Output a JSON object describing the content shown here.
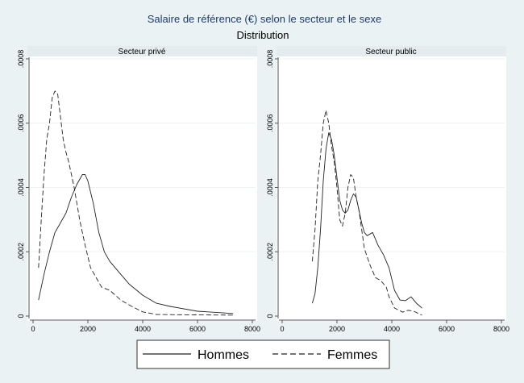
{
  "title": "Salaire de référence (€) selon le secteur et le sexe",
  "subtitle": "Distribution",
  "colors": {
    "title": "#1e3a6e",
    "background": "#eaf2f3",
    "plot": "#ffffff",
    "line": "#222222"
  },
  "legend": {
    "position": "bottom",
    "items": [
      "Hommes",
      "Femmes"
    ]
  },
  "chart_data": [
    {
      "type": "line",
      "title": "Secteur privé",
      "xlim": [
        0,
        8000
      ],
      "ylim": [
        0,
        0.0008
      ],
      "xticks": [
        "0",
        "2000",
        "4000",
        "6000",
        "8000"
      ],
      "yticks": [
        "0",
        ".0002",
        ".0004",
        ".0006",
        ".0008"
      ],
      "grid": true,
      "series": [
        {
          "name": "Hommes",
          "style": "solid",
          "x": [
            200,
            400,
            600,
            800,
            1000,
            1200,
            1400,
            1600,
            1800,
            1900,
            2000,
            2200,
            2400,
            2600,
            2800,
            3000,
            3200,
            3500,
            4000,
            4500,
            5000,
            6000,
            7300
          ],
          "y": [
            5e-05,
            0.00013,
            0.0002,
            0.00026,
            0.00029,
            0.00032,
            0.00037,
            0.00041,
            0.00044,
            0.00044,
            0.00042,
            0.00035,
            0.00026,
            0.0002,
            0.00017,
            0.00015,
            0.00013,
            0.0001,
            6.5e-05,
            4e-05,
            3e-05,
            1.5e-05,
            8e-06
          ]
        },
        {
          "name": "Femmes",
          "style": "dashed",
          "x": [
            200,
            300,
            400,
            500,
            600,
            700,
            800,
            900,
            1000,
            1100,
            1200,
            1300,
            1500,
            1700,
            1900,
            2100,
            2300,
            2500,
            2800,
            3200,
            3600,
            4000,
            4500,
            5500,
            7300
          ],
          "y": [
            0.00015,
            0.0003,
            0.00044,
            0.00055,
            0.0006,
            0.00068,
            0.0007,
            0.00069,
            0.00062,
            0.00055,
            0.00051,
            0.00048,
            0.0004,
            0.0003,
            0.00022,
            0.00015,
            0.00012,
            9e-05,
            8e-05,
            5e-05,
            3e-05,
            1.3e-05,
            5e-06,
            4e-06,
            3e-06
          ]
        }
      ]
    },
    {
      "type": "line",
      "title": "Secteur public",
      "xlim": [
        0,
        8000
      ],
      "ylim": [
        0,
        0.0008
      ],
      "xticks": [
        "0",
        "2000",
        "4000",
        "6000",
        "8000"
      ],
      "yticks": [
        "0",
        ".0002",
        ".0004",
        ".0006",
        ".0008"
      ],
      "grid": true,
      "series": [
        {
          "name": "Hommes",
          "style": "solid",
          "x": [
            1100,
            1200,
            1300,
            1400,
            1500,
            1600,
            1700,
            1800,
            1900,
            2000,
            2100,
            2200,
            2300,
            2400,
            2500,
            2600,
            2700,
            2800,
            2900,
            3000,
            3100,
            3300,
            3500,
            3700,
            3900,
            4100,
            4300,
            4500,
            4700,
            4900,
            5100
          ],
          "y": [
            4e-05,
            7e-05,
            0.00015,
            0.00027,
            0.00042,
            0.00052,
            0.00057,
            0.00055,
            0.0005,
            0.00043,
            0.00036,
            0.00033,
            0.00032,
            0.00033,
            0.00036,
            0.00038,
            0.00037,
            0.00033,
            0.00029,
            0.00026,
            0.00025,
            0.00026,
            0.00022,
            0.00019,
            0.00015,
            8e-05,
            5e-05,
            4.8e-05,
            6e-05,
            4e-05,
            2.5e-05
          ]
        },
        {
          "name": "Femmes",
          "style": "dashed",
          "x": [
            1100,
            1200,
            1300,
            1400,
            1500,
            1600,
            1700,
            1800,
            1900,
            2000,
            2100,
            2200,
            2300,
            2400,
            2500,
            2600,
            2700,
            2800,
            2900,
            3000,
            3200,
            3400,
            3600,
            3800,
            3900,
            4100,
            4400,
            4600,
            4800,
            5100
          ],
          "y": [
            0.00017,
            0.00027,
            0.00042,
            0.0005,
            0.0006,
            0.00064,
            0.0006,
            0.00053,
            0.00048,
            0.0004,
            0.0003,
            0.00028,
            0.00032,
            0.0004,
            0.00044,
            0.00043,
            0.00037,
            0.00033,
            0.00027,
            0.00021,
            0.00016,
            0.00012,
            0.00011,
            9e-05,
            6e-05,
            2.5e-05,
            1.2e-05,
            1.8e-05,
            1.5e-05,
            3e-06
          ]
        }
      ]
    }
  ]
}
